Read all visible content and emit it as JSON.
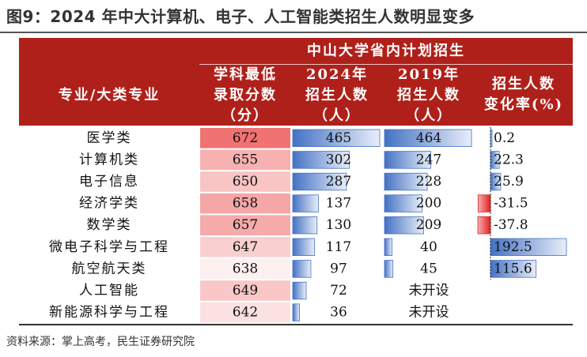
{
  "figure_title": "图9：2024 年中大计算机、电子、人工智能类招生人数明显变多",
  "source": "资料来源：掌上高考，民生证券研究院",
  "header": {
    "group_title": "中山大学省内计划招生",
    "col_major": "专业/大类专业",
    "col_min_score": "学科最低\n录取分数\n（分）",
    "col_2024": "2024年\n招生人数\n（人）",
    "col_2019": "2019年\n招生人数\n（人）",
    "col_change": "招生人数\n变化率(%)"
  },
  "colors": {
    "header_bg": "#b0201a",
    "score_high": "#f07272",
    "score_low": "#fdf0f0",
    "bar_blue": "#4472c4",
    "bar_red": "#e02020"
  },
  "chart_data": {
    "type": "table",
    "columns": [
      "专业/大类专业",
      "学科最低录取分数（分）",
      "2024年招生人数（人）",
      "2019年招生人数（人）",
      "招生人数变化率(%)"
    ],
    "rows": [
      {
        "major": "医学类",
        "min_score": 672,
        "enroll_2024": 465,
        "enroll_2019": "464",
        "change": "0.2",
        "change_value": 0.2
      },
      {
        "major": "计算机类",
        "min_score": 655,
        "enroll_2024": 302,
        "enroll_2019": "247",
        "change": "22.3",
        "change_value": 22.3
      },
      {
        "major": "电子信息",
        "min_score": 650,
        "enroll_2024": 287,
        "enroll_2019": "228",
        "change": "25.9",
        "change_value": 25.9
      },
      {
        "major": "经济学类",
        "min_score": 658,
        "enroll_2024": 137,
        "enroll_2019": "200",
        "change": "-31.5",
        "change_value": -31.5
      },
      {
        "major": "数学类",
        "min_score": 657,
        "enroll_2024": 130,
        "enroll_2019": "209",
        "change": "-37.8",
        "change_value": -37.8
      },
      {
        "major": "微电子科学与工程",
        "min_score": 647,
        "enroll_2024": 117,
        "enroll_2019": "40",
        "change": "192.5",
        "change_value": 192.5
      },
      {
        "major": "航空航天类",
        "min_score": 638,
        "enroll_2024": 97,
        "enroll_2019": "45",
        "change": "115.6",
        "change_value": 115.6
      },
      {
        "major": "人工智能",
        "min_score": 649,
        "enroll_2024": 72,
        "enroll_2019": "未开设",
        "change": "",
        "change_value": null
      },
      {
        "major": "新能源科学与工程",
        "min_score": 642,
        "enroll_2024": 36,
        "enroll_2019": "未开设",
        "change": "",
        "change_value": null
      }
    ]
  }
}
